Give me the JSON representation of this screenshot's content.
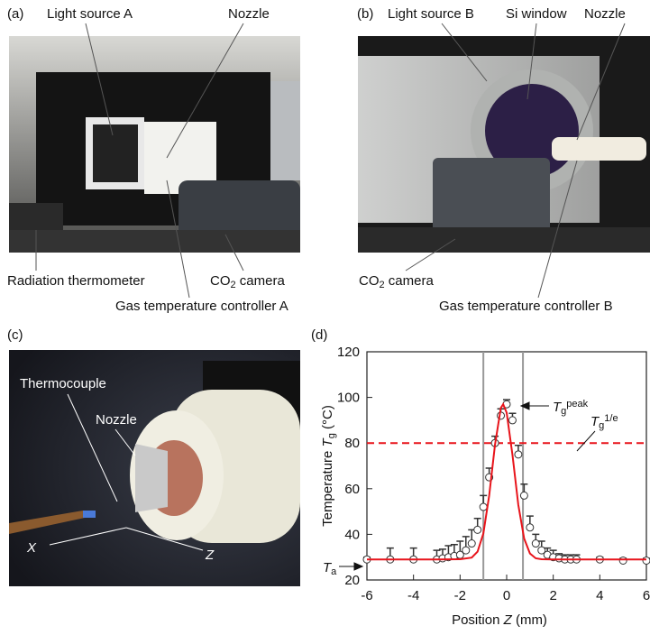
{
  "panels": {
    "a": {
      "tag": "(a)",
      "light_source": "Light source A",
      "nozzle": "Nozzle",
      "thermometer": "Radiation thermometer",
      "camera": [
        "CO",
        "2",
        " camera"
      ],
      "controller": "Gas temperature controller A"
    },
    "b": {
      "tag": "(b)",
      "light_source": "Light source B",
      "window": "Si window",
      "nozzle": "Nozzle",
      "camera": [
        "CO",
        "2",
        " camera"
      ],
      "controller": "Gas temperature controller B"
    },
    "c": {
      "tag": "(c)",
      "thermocouple": "Thermocouple",
      "nozzle": "Nozzle",
      "x_axis": "X",
      "z_axis": "Z"
    },
    "d": {
      "tag": "(d)"
    }
  },
  "chart_data": {
    "type": "scatter",
    "xlabel": [
      "Position ",
      "Z",
      " (mm)"
    ],
    "ylabel": [
      "Temperature ",
      "T",
      "g",
      " (°C)"
    ],
    "xlim": [
      -6,
      6
    ],
    "ylim": [
      20,
      120
    ],
    "xticks": [
      -6,
      -4,
      -2,
      0,
      2,
      4,
      6
    ],
    "yticks": [
      20,
      40,
      60,
      80,
      100,
      120
    ],
    "series": [
      {
        "type": "scatter",
        "color": "#333333",
        "x": [
          -6,
          -5,
          -4,
          -3,
          -2.75,
          -2.5,
          -2.25,
          -2,
          -1.75,
          -1.5,
          -1.25,
          -1,
          -0.75,
          -0.5,
          -0.25,
          0,
          0.25,
          0.5,
          0.75,
          1,
          1.25,
          1.5,
          1.75,
          2,
          2.25,
          2.5,
          2.75,
          3,
          4,
          5,
          6
        ],
        "values": [
          29,
          29,
          29,
          29,
          29.5,
          30,
          30.5,
          31,
          33,
          36,
          42,
          52,
          65,
          80,
          92,
          97,
          90,
          75,
          57,
          43,
          36,
          33,
          31,
          30,
          29.5,
          29,
          29,
          29,
          29,
          28.5,
          28.5
        ],
        "errors": [
          1,
          5,
          5,
          4,
          4,
          5,
          5,
          6,
          6,
          6,
          5,
          5,
          4,
          3,
          3,
          2,
          3,
          4,
          5,
          5,
          4,
          4,
          3,
          3,
          2,
          2,
          2,
          2,
          1,
          1,
          1
        ]
      },
      {
        "type": "line",
        "color": "#e8141b",
        "x": [
          -6,
          -3,
          -2,
          -1.5,
          -1.25,
          -1,
          -0.75,
          -0.5,
          -0.25,
          -0.15,
          0,
          0.25,
          0.5,
          0.75,
          1,
          1.25,
          1.5,
          2,
          3,
          6
        ],
        "values": [
          29,
          29,
          29.1,
          29.8,
          32.4,
          40.4,
          57,
          79.3,
          95.4,
          97,
          93.3,
          74.8,
          52.9,
          38.2,
          31.6,
          29.5,
          29.1,
          29,
          29,
          29
        ]
      }
    ],
    "vlines": [
      -1,
      0.7
    ],
    "vline_color": "#999999",
    "hline": 80,
    "hline_color": "#e8141b",
    "annotations": [
      {
        "base": "T",
        "sub": "g",
        "sup": "peak"
      },
      {
        "base": "T",
        "sub": "g",
        "sup": "1/e"
      },
      {
        "base": "T",
        "sub": "a"
      }
    ]
  }
}
